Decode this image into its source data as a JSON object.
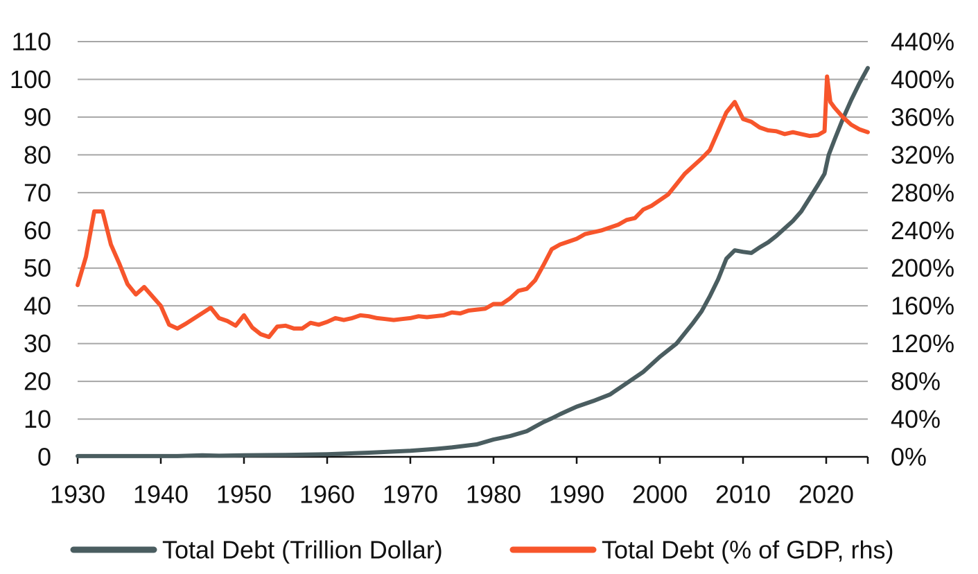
{
  "chart_data": {
    "type": "line",
    "title": "",
    "xlabel": "",
    "ylabel": "",
    "xlim": [
      1930,
      2025
    ],
    "ylim": [
      0,
      110
    ],
    "y2lim": [
      0,
      440
    ],
    "x_ticks": [
      1930,
      1940,
      1950,
      1960,
      1970,
      1980,
      1990,
      2000,
      2010,
      2020
    ],
    "x_tick_labels": [
      "1930",
      "1940",
      "1950",
      "1960",
      "1970",
      "1980",
      "1990",
      "2000",
      "2010",
      "2020"
    ],
    "y_ticks": [
      0,
      10,
      20,
      30,
      40,
      50,
      60,
      70,
      80,
      90,
      100,
      110
    ],
    "y_tick_labels": [
      "0",
      "10",
      "20",
      "30",
      "40",
      "50",
      "60",
      "70",
      "80",
      "90",
      "100",
      "110"
    ],
    "y2_ticks": [
      0,
      40,
      80,
      120,
      160,
      200,
      240,
      280,
      320,
      360,
      400,
      440
    ],
    "y2_tick_labels": [
      "0%",
      "40%",
      "80%",
      "120%",
      "160%",
      "200%",
      "240%",
      "280%",
      "320%",
      "360%",
      "400%",
      "440%"
    ],
    "grid": true,
    "legend_position": "bottom",
    "series": [
      {
        "name": "Total Debt (Trillion Dollar)",
        "axis": "left",
        "color": "#4a5d60",
        "points": [
          [
            1930,
            0.2
          ],
          [
            1935,
            0.2
          ],
          [
            1940,
            0.2
          ],
          [
            1942,
            0.2
          ],
          [
            1945,
            0.4
          ],
          [
            1947,
            0.3
          ],
          [
            1950,
            0.4
          ],
          [
            1955,
            0.5
          ],
          [
            1960,
            0.7
          ],
          [
            1965,
            1.1
          ],
          [
            1970,
            1.6
          ],
          [
            1973,
            2.1
          ],
          [
            1975,
            2.5
          ],
          [
            1978,
            3.3
          ],
          [
            1980,
            4.6
          ],
          [
            1982,
            5.5
          ],
          [
            1984,
            6.8
          ],
          [
            1985,
            8.0
          ],
          [
            1986,
            9.2
          ],
          [
            1987,
            10.2
          ],
          [
            1988,
            11.3
          ],
          [
            1989,
            12.3
          ],
          [
            1990,
            13.3
          ],
          [
            1992,
            14.8
          ],
          [
            1994,
            16.5
          ],
          [
            1996,
            19.5
          ],
          [
            1998,
            22.5
          ],
          [
            2000,
            26.5
          ],
          [
            2002,
            30.0
          ],
          [
            2004,
            35.5
          ],
          [
            2005,
            38.5
          ],
          [
            2006,
            42.5
          ],
          [
            2007,
            47.0
          ],
          [
            2008,
            52.5
          ],
          [
            2009,
            54.7
          ],
          [
            2010,
            54.3
          ],
          [
            2011,
            54.0
          ],
          [
            2012,
            55.5
          ],
          [
            2013,
            56.8
          ],
          [
            2014,
            58.5
          ],
          [
            2015,
            60.5
          ],
          [
            2016,
            62.5
          ],
          [
            2017,
            65.0
          ],
          [
            2018,
            68.5
          ],
          [
            2019,
            72.0
          ],
          [
            2019.8,
            75.0
          ],
          [
            2020.3,
            80.0
          ],
          [
            2021,
            84.0
          ],
          [
            2022,
            89.5
          ],
          [
            2023,
            94.5
          ],
          [
            2024,
            99.0
          ],
          [
            2025,
            103.0
          ]
        ]
      },
      {
        "name": "Total Debt (% of GDP, rhs)",
        "axis": "right",
        "color": "#f7552b",
        "points": [
          [
            1930,
            182
          ],
          [
            1931,
            212
          ],
          [
            1932,
            260
          ],
          [
            1933,
            260
          ],
          [
            1934,
            225
          ],
          [
            1935,
            205
          ],
          [
            1936,
            183
          ],
          [
            1937,
            172
          ],
          [
            1938,
            180
          ],
          [
            1939,
            170
          ],
          [
            1940,
            160
          ],
          [
            1941,
            140
          ],
          [
            1942,
            136
          ],
          [
            1943,
            141
          ],
          [
            1946,
            158
          ],
          [
            1947,
            147
          ],
          [
            1948,
            144
          ],
          [
            1949,
            139
          ],
          [
            1950,
            150
          ],
          [
            1951,
            137
          ],
          [
            1952,
            130
          ],
          [
            1953,
            127
          ],
          [
            1954,
            138
          ],
          [
            1955,
            139
          ],
          [
            1956,
            136
          ],
          [
            1957,
            136
          ],
          [
            1958,
            142
          ],
          [
            1959,
            140
          ],
          [
            1960,
            143
          ],
          [
            1961,
            147
          ],
          [
            1962,
            145
          ],
          [
            1963,
            147
          ],
          [
            1964,
            150
          ],
          [
            1965,
            149
          ],
          [
            1966,
            147
          ],
          [
            1967,
            146
          ],
          [
            1968,
            145
          ],
          [
            1969,
            146
          ],
          [
            1970,
            147
          ],
          [
            1971,
            149
          ],
          [
            1972,
            148
          ],
          [
            1973,
            149
          ],
          [
            1974,
            150
          ],
          [
            1975,
            153
          ],
          [
            1976,
            152
          ],
          [
            1977,
            155
          ],
          [
            1978,
            156
          ],
          [
            1979,
            157
          ],
          [
            1980,
            162
          ],
          [
            1981,
            162
          ],
          [
            1982,
            168
          ],
          [
            1983,
            176
          ],
          [
            1984,
            178
          ],
          [
            1985,
            187
          ],
          [
            1986,
            203
          ],
          [
            1987,
            220
          ],
          [
            1988,
            225
          ],
          [
            1989,
            228
          ],
          [
            1990,
            231
          ],
          [
            1991,
            236
          ],
          [
            1992,
            238
          ],
          [
            1993,
            240
          ],
          [
            1994,
            243
          ],
          [
            1995,
            246
          ],
          [
            1996,
            251
          ],
          [
            1997,
            253
          ],
          [
            1998,
            262
          ],
          [
            1999,
            266
          ],
          [
            2000,
            272
          ],
          [
            2001,
            278
          ],
          [
            2002,
            289
          ],
          [
            2003,
            300
          ],
          [
            2004,
            308
          ],
          [
            2005,
            316
          ],
          [
            2006,
            325
          ],
          [
            2007,
            345
          ],
          [
            2008,
            365
          ],
          [
            2009,
            376
          ],
          [
            2010,
            358
          ],
          [
            2011,
            355
          ],
          [
            2012,
            349
          ],
          [
            2013,
            346
          ],
          [
            2014,
            345
          ],
          [
            2015,
            342
          ],
          [
            2016,
            344
          ],
          [
            2017,
            342
          ],
          [
            2018,
            340
          ],
          [
            2019,
            341
          ],
          [
            2019.8,
            345
          ],
          [
            2020.1,
            403
          ],
          [
            2020.5,
            376
          ],
          [
            2021,
            370
          ],
          [
            2022,
            360
          ],
          [
            2023,
            352
          ],
          [
            2024,
            347
          ],
          [
            2025,
            344
          ]
        ]
      }
    ]
  }
}
